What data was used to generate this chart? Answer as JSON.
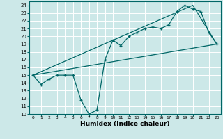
{
  "xlabel": "Humidex (Indice chaleur)",
  "xlim": [
    -0.5,
    23.5
  ],
  "ylim": [
    10,
    24.5
  ],
  "yticks": [
    10,
    11,
    12,
    13,
    14,
    15,
    16,
    17,
    18,
    19,
    20,
    21,
    22,
    23,
    24
  ],
  "xticks": [
    0,
    1,
    2,
    3,
    4,
    5,
    6,
    7,
    8,
    9,
    10,
    11,
    12,
    13,
    14,
    15,
    16,
    17,
    18,
    19,
    20,
    21,
    22,
    23
  ],
  "bg_color": "#cce8e8",
  "line_color": "#006666",
  "grid_color": "#ffffff",
  "line1_x": [
    0,
    1,
    2,
    3,
    4,
    5,
    6,
    7,
    8,
    9,
    10,
    11,
    12,
    13,
    14,
    15,
    16,
    17,
    18,
    19,
    20,
    21,
    22,
    23
  ],
  "line1_y": [
    15,
    13.8,
    14.5,
    15,
    15,
    15,
    11.8,
    10,
    10.5,
    17,
    19.5,
    18.8,
    20,
    20.5,
    21,
    21.2,
    21,
    21.5,
    23.2,
    24,
    23.5,
    23.2,
    20.5,
    19
  ],
  "line2_x": [
    0,
    23
  ],
  "line2_y": [
    15,
    19
  ],
  "line3_x": [
    0,
    20,
    23
  ],
  "line3_y": [
    15,
    24,
    19
  ]
}
